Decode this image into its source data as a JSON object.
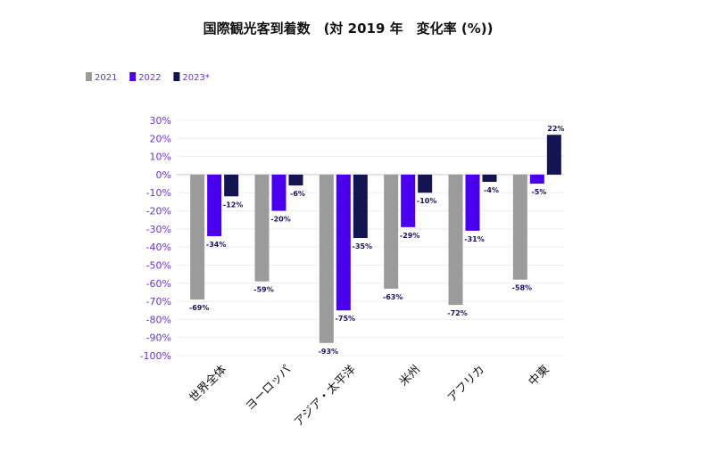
{
  "chart_data": {
    "type": "bar",
    "title": "国際観光客到着数　(対 2019 年　変化率 (%))",
    "categories": [
      "世界全体",
      "ヨーロッパ",
      "アジア・太平洋",
      "米州",
      "アフリカ",
      "中東"
    ],
    "series": [
      {
        "name": "2021",
        "color": "#9b9b9b",
        "values": [
          -69,
          -59,
          -93,
          -63,
          -72,
          -58
        ]
      },
      {
        "name": "2022",
        "color": "#4a00ee",
        "values": [
          -34,
          -20,
          -75,
          -29,
          -31,
          -5
        ]
      },
      {
        "name": "2023*",
        "color": "#141452",
        "values": [
          -12,
          -6,
          -35,
          -10,
          -4,
          22
        ]
      }
    ],
    "value_labels": [
      [
        "-69%",
        "-59%",
        "-93%",
        "-63%",
        "-72%",
        "-58%"
      ],
      [
        "-34%",
        "-20%",
        "-75%",
        "-29%",
        "-31%",
        "-5%"
      ],
      [
        "-12%",
        "-6%",
        "-35%",
        "-10%",
        "-4%",
        "22%"
      ]
    ],
    "ylim": [
      -100,
      30
    ],
    "yticks": [
      30,
      20,
      10,
      0,
      -10,
      -20,
      -30,
      -40,
      -50,
      -60,
      -70,
      -80,
      -90,
      -100
    ],
    "ytick_labels": [
      "30%",
      "20%",
      "10%",
      "0%",
      "-10%",
      "-20%",
      "-30%",
      "-40%",
      "-50%",
      "-60%",
      "-70%",
      "-80%",
      "-90%",
      "-100%"
    ],
    "grid": true,
    "legend_position": "top-left"
  }
}
